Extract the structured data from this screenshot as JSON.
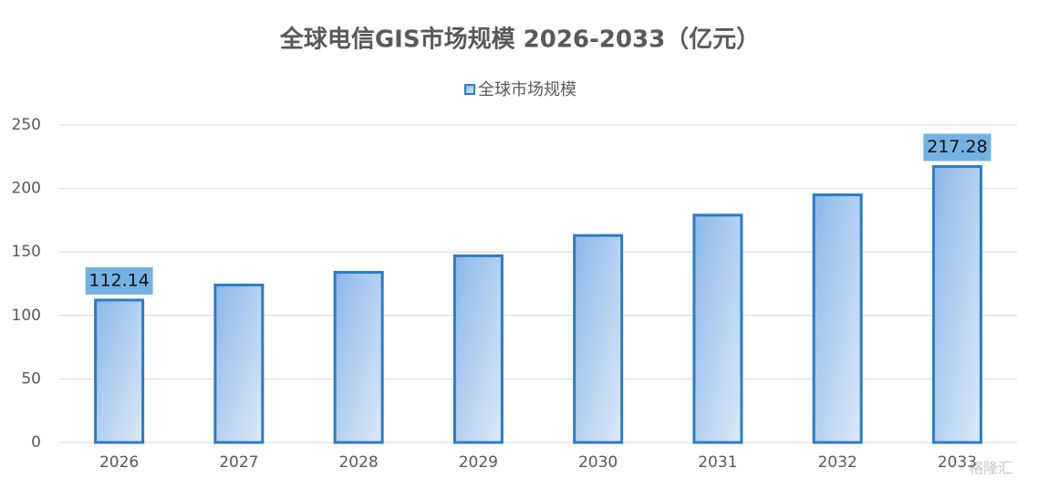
{
  "chart_data": {
    "type": "bar",
    "title": "全球电信GIS市场规模 2026-2033（亿元）",
    "categories": [
      "2026",
      "2027",
      "2028",
      "2029",
      "2030",
      "2031",
      "2032",
      "2033"
    ],
    "series": [
      {
        "name": "全球市场规模",
        "color": "#2e7bbf",
        "values": [
          112.14,
          124,
          134,
          147,
          163,
          179,
          195,
          217.28
        ],
        "value_labels": [
          "112.14",
          null,
          null,
          null,
          null,
          null,
          null,
          "217.28"
        ]
      }
    ],
    "ylim": [
      0,
      250
    ],
    "yticks": [
      0,
      50,
      100,
      150,
      200,
      250
    ],
    "grid": true,
    "legend": "top",
    "watermark": "格隆汇"
  }
}
